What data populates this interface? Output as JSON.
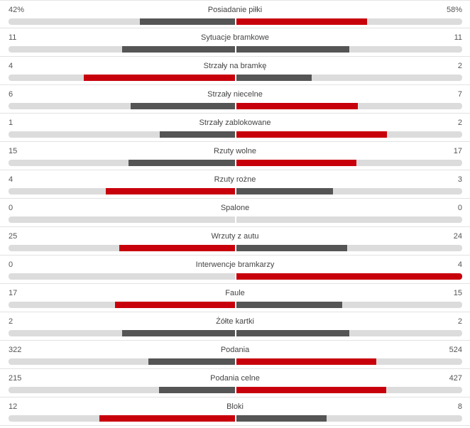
{
  "colors": {
    "leader": "#c8000b",
    "trailer": "#555555",
    "track": "#dcdcdc"
  },
  "stats": [
    {
      "label": "Posiadanie piłki",
      "home": "42%",
      "away": "58%",
      "home_ratio": 0.42,
      "away_ratio": 0.58
    },
    {
      "label": "Sytuacje bramkowe",
      "home": "11",
      "away": "11",
      "home_ratio": 0.5,
      "away_ratio": 0.5
    },
    {
      "label": "Strzały na bramkę",
      "home": "4",
      "away": "2",
      "home_ratio": 0.667,
      "away_ratio": 0.333
    },
    {
      "label": "Strzały niecelne",
      "home": "6",
      "away": "7",
      "home_ratio": 0.462,
      "away_ratio": 0.538
    },
    {
      "label": "Strzały zablokowane",
      "home": "1",
      "away": "2",
      "home_ratio": 0.333,
      "away_ratio": 0.667
    },
    {
      "label": "Rzuty wolne",
      "home": "15",
      "away": "17",
      "home_ratio": 0.469,
      "away_ratio": 0.531
    },
    {
      "label": "Rzuty rożne",
      "home": "4",
      "away": "3",
      "home_ratio": 0.571,
      "away_ratio": 0.429
    },
    {
      "label": "Spalone",
      "home": "0",
      "away": "0",
      "home_ratio": 0,
      "away_ratio": 0
    },
    {
      "label": "Wrzuty z autu",
      "home": "25",
      "away": "24",
      "home_ratio": 0.51,
      "away_ratio": 0.49
    },
    {
      "label": "Interwencje bramkarzy",
      "home": "0",
      "away": "4",
      "home_ratio": 0,
      "away_ratio": 1
    },
    {
      "label": "Faule",
      "home": "17",
      "away": "15",
      "home_ratio": 0.531,
      "away_ratio": 0.469
    },
    {
      "label": "Żółte kartki",
      "home": "2",
      "away": "2",
      "home_ratio": 0.5,
      "away_ratio": 0.5
    },
    {
      "label": "Podania",
      "home": "322",
      "away": "524",
      "home_ratio": 0.381,
      "away_ratio": 0.619
    },
    {
      "label": "Podania celne",
      "home": "215",
      "away": "427",
      "home_ratio": 0.335,
      "away_ratio": 0.665
    },
    {
      "label": "Bloki",
      "home": "12",
      "away": "8",
      "home_ratio": 0.6,
      "away_ratio": 0.4
    }
  ]
}
